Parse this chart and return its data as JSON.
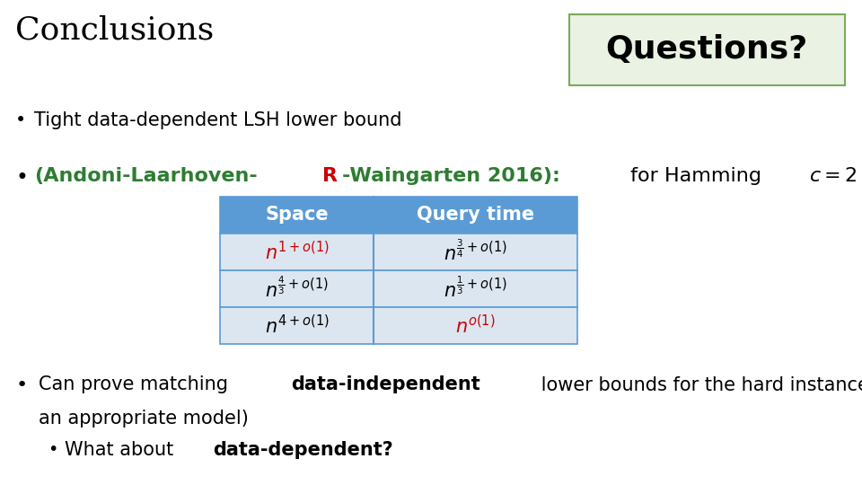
{
  "title": "Conclusions",
  "questions_text": "Questions?",
  "background_color": "#ffffff",
  "title_color": "#000000",
  "title_fontsize": 26,
  "questions_fontsize": 26,
  "questions_bg": "#eaf2e3",
  "questions_border": "#7aaa5a",
  "bullet_fontsize": 15,
  "table_header_bg": "#5b9bd5",
  "table_header_text": "#ffffff",
  "table_row_bg": "#dce6f1",
  "table_border": "#5b9bd5",
  "col1_header": "Space",
  "col2_header": "Query time",
  "row1_col1_color": "#cc0000",
  "row1_col2_color": "#000000",
  "row2_col1_color": "#000000",
  "row2_col2_color": "#000000",
  "row3_col1_color": "#000000",
  "row3_col2_color": "#cc0000",
  "table_fontsize": 13,
  "green_color": "#2e7d32",
  "red_color": "#cc0000"
}
